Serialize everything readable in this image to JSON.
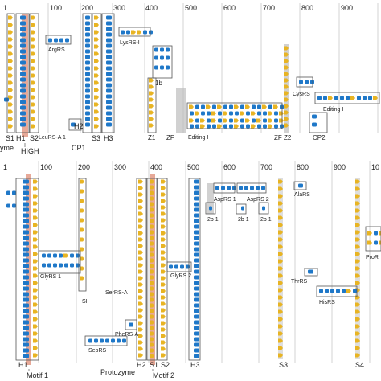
{
  "colors": {
    "helix": "#1f78c8",
    "strand": "#e8b423",
    "motif_band": "#e39a86",
    "frame": "#555555",
    "grid": "#c8c8c8",
    "text": "#222222"
  },
  "legend_icons": [
    "helix-icon (blue rounded rectangle)",
    "strand-icon (yellow arrow)"
  ],
  "top_panel": {
    "axis_ticks": [
      "1",
      "100",
      "200",
      "300",
      "400",
      "500",
      "600",
      "700",
      "800",
      "900"
    ],
    "element_labels": [
      "S1",
      "H1",
      "S2",
      "H2",
      "S3",
      "H3",
      "Z1",
      "ZF",
      "ZF",
      "Z2",
      "CP2"
    ],
    "element_labels_line2": [
      "CP1"
    ],
    "region_labels": [
      "HIGH",
      "yme",
      "LeuRS-A 1",
      "Editing I",
      "Editing I"
    ],
    "enzyme_labels": [
      "ArgRS",
      "LysRS-I",
      "1b",
      "CysRS"
    ]
  },
  "bottom_panel": {
    "axis_ticks": [
      "1",
      "100",
      "200",
      "300",
      "400",
      "500",
      "600",
      "700",
      "800",
      "900",
      "10"
    ],
    "element_labels": [
      "H1",
      "H2",
      "S1",
      "S2",
      "H3",
      "S3",
      "S4"
    ],
    "region_labels": [
      "Motif 1",
      "Protozyme",
      "Motif 2"
    ],
    "enzyme_labels": [
      "GlyRS 1",
      "SI",
      "SerRS-A",
      "PheRS-A",
      "SepRS",
      "GlyRS 2",
      "AspRS 1",
      "AspRS 2",
      "2b 1",
      "2b 1",
      "2b 1",
      "AlaRS",
      "ThrRS",
      "HisRS",
      "ProR"
    ]
  }
}
